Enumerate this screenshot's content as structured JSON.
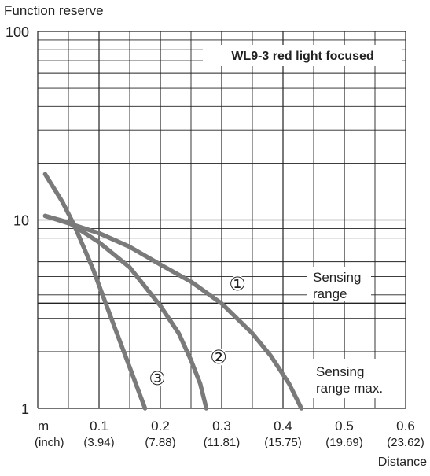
{
  "chart_data": {
    "type": "line",
    "title": "WL9-3 red light focused",
    "ylabel": "Function reserve",
    "xlabel": "Distance",
    "x_unit": "m",
    "x_unit_alt": "(inch)",
    "x_scale": "linear",
    "y_scale": "log",
    "xlim": [
      0,
      0.6
    ],
    "ylim": [
      1,
      100
    ],
    "grid": true,
    "x_ticks": [
      {
        "value": 0.1,
        "label": "0.1",
        "sublabel": "(3.94)"
      },
      {
        "value": 0.2,
        "label": "0.2",
        "sublabel": "(7.88)"
      },
      {
        "value": 0.3,
        "label": "0.3",
        "sublabel": "(11.81)"
      },
      {
        "value": 0.4,
        "label": "0.4",
        "sublabel": "(15.75)"
      },
      {
        "value": 0.5,
        "label": "0.5",
        "sublabel": "(19.69)"
      },
      {
        "value": 0.6,
        "label": "0.6",
        "sublabel": "(23.62)"
      }
    ],
    "y_ticks": [
      {
        "value": 1,
        "label": "1"
      },
      {
        "value": 10,
        "label": "10"
      },
      {
        "value": 100,
        "label": "100"
      }
    ],
    "series": [
      {
        "name": "①",
        "x": [
          0.012,
          0.05,
          0.1,
          0.15,
          0.2,
          0.25,
          0.3,
          0.35,
          0.38,
          0.41,
          0.43
        ],
        "y": [
          10.5,
          9.6,
          8.5,
          7.2,
          5.8,
          4.7,
          3.6,
          2.5,
          1.9,
          1.35,
          1.0
        ]
      },
      {
        "name": "②",
        "x": [
          0.012,
          0.05,
          0.1,
          0.15,
          0.2,
          0.23,
          0.25,
          0.265,
          0.275
        ],
        "y": [
          10.5,
          9.7,
          7.6,
          5.6,
          3.5,
          2.5,
          1.8,
          1.35,
          1.0
        ]
      },
      {
        "name": "③",
        "x": [
          0.012,
          0.04,
          0.06,
          0.09,
          0.12,
          0.15,
          0.175
        ],
        "y": [
          17.5,
          12.5,
          9.3,
          5.5,
          3.0,
          1.65,
          1.0
        ]
      }
    ],
    "reference_lines": [
      {
        "y": 3.6,
        "label": "Sensing range"
      }
    ],
    "annotations": [
      {
        "label": "Sensing range max."
      }
    ],
    "colors": {
      "curve": "#7a7a7a",
      "grid": "#222222",
      "text": "#222222"
    }
  }
}
